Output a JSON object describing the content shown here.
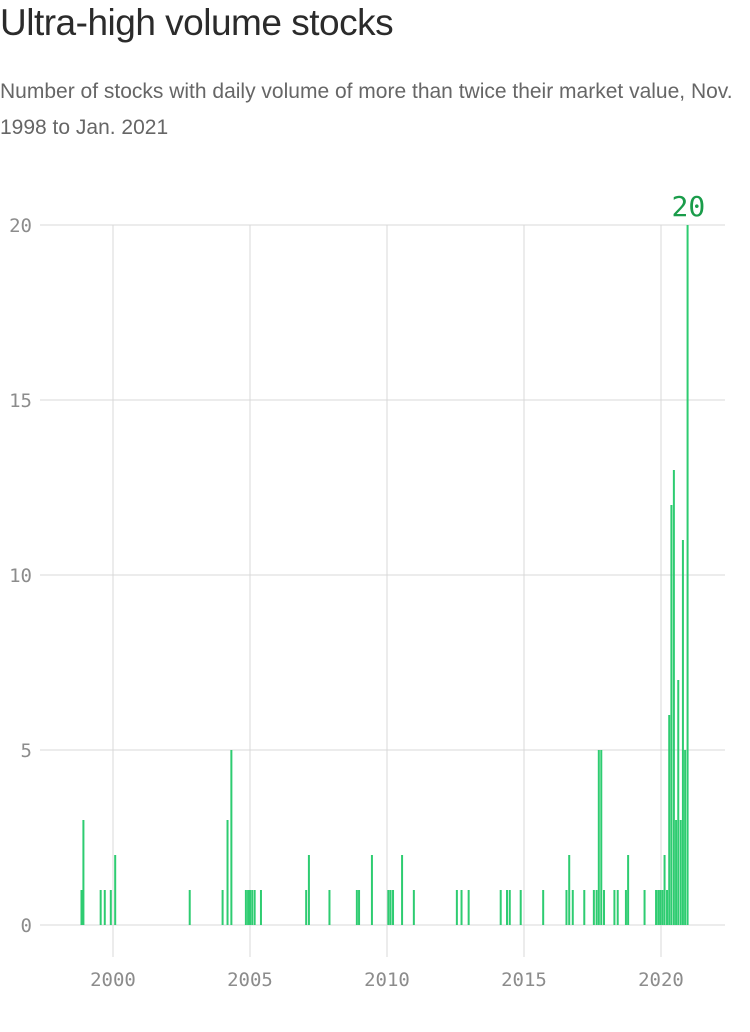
{
  "colors": {
    "bar": "#2ecc71",
    "annotation": "#1a9c4a",
    "grid": "#d9d9d9",
    "text": "#2b2b2b",
    "muted": "#666666"
  },
  "chart_data": {
    "type": "bar",
    "title": "Ultra-high volume stocks",
    "subtitle": "Number of stocks with daily volume of more than twice their market value, Nov. 1998 to Jan. 2021",
    "xlabel": "",
    "ylabel": "",
    "xlim": [
      1997.2,
      2022.3
    ],
    "ylim": [
      0,
      20
    ],
    "yticks": [
      "0",
      "5",
      "10",
      "15",
      "20"
    ],
    "xticks": [
      "2000",
      "2005",
      "2010",
      "2015",
      "2020"
    ],
    "xtick_values": [
      2000,
      2005,
      2010,
      2015,
      2020
    ],
    "grid": true,
    "annotation": {
      "x": 2021.0,
      "y": 20,
      "text": "20"
    },
    "points": [
      [
        1998.85,
        1
      ],
      [
        1998.92,
        3
      ],
      [
        1999.55,
        1
      ],
      [
        1999.7,
        1
      ],
      [
        1999.92,
        1
      ],
      [
        2000.08,
        2
      ],
      [
        2002.8,
        1
      ],
      [
        2004.0,
        1
      ],
      [
        2004.18,
        3
      ],
      [
        2004.32,
        5
      ],
      [
        2004.85,
        1
      ],
      [
        2004.93,
        1
      ],
      [
        2005.0,
        1
      ],
      [
        2005.08,
        1
      ],
      [
        2005.17,
        1
      ],
      [
        2005.4,
        1
      ],
      [
        2007.05,
        1
      ],
      [
        2007.15,
        2
      ],
      [
        2007.9,
        1
      ],
      [
        2008.9,
        1
      ],
      [
        2008.98,
        1
      ],
      [
        2009.45,
        2
      ],
      [
        2010.05,
        1
      ],
      [
        2010.13,
        1
      ],
      [
        2010.22,
        1
      ],
      [
        2010.55,
        2
      ],
      [
        2010.98,
        1
      ],
      [
        2012.55,
        1
      ],
      [
        2012.72,
        1
      ],
      [
        2012.98,
        1
      ],
      [
        2014.15,
        1
      ],
      [
        2014.38,
        1
      ],
      [
        2014.48,
        1
      ],
      [
        2014.88,
        1
      ],
      [
        2015.7,
        1
      ],
      [
        2016.55,
        1
      ],
      [
        2016.65,
        2
      ],
      [
        2016.78,
        1
      ],
      [
        2017.2,
        1
      ],
      [
        2017.55,
        1
      ],
      [
        2017.65,
        1
      ],
      [
        2017.73,
        5
      ],
      [
        2017.82,
        5
      ],
      [
        2017.92,
        1
      ],
      [
        2018.3,
        1
      ],
      [
        2018.42,
        1
      ],
      [
        2018.72,
        1
      ],
      [
        2018.8,
        2
      ],
      [
        2019.4,
        1
      ],
      [
        2019.82,
        1
      ],
      [
        2019.9,
        1
      ],
      [
        2019.97,
        1
      ],
      [
        2020.05,
        1
      ],
      [
        2020.13,
        2
      ],
      [
        2020.22,
        1
      ],
      [
        2020.3,
        6
      ],
      [
        2020.38,
        12
      ],
      [
        2020.47,
        13
      ],
      [
        2020.55,
        3
      ],
      [
        2020.63,
        7
      ],
      [
        2020.72,
        3
      ],
      [
        2020.8,
        11
      ],
      [
        2020.88,
        5
      ],
      [
        2020.97,
        20
      ]
    ]
  }
}
